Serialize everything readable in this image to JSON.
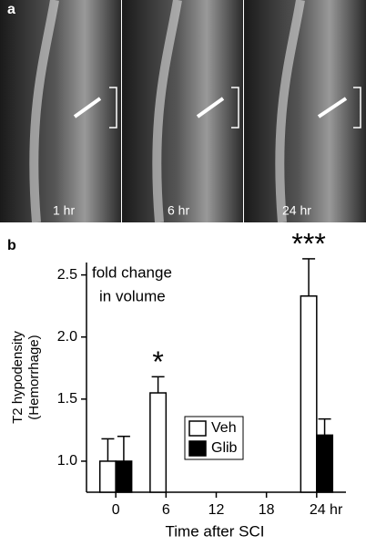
{
  "panel_a": {
    "label": "a",
    "images": [
      {
        "label": "1 hr"
      },
      {
        "label": "6 hr"
      },
      {
        "label": "24 hr"
      }
    ]
  },
  "chart_data": {
    "type": "bar",
    "panel_label": "b",
    "y_label": [
      "T2 hypodensity",
      "(Hemorrhage)"
    ],
    "x_label": "Time after SCI",
    "note": [
      "fold change",
      "in volume"
    ],
    "x": [
      0,
      6,
      24
    ],
    "series": [
      {
        "name": "Veh",
        "color": "#ffffff",
        "values": [
          1.0,
          1.55,
          2.33
        ],
        "errors": [
          0.18,
          0.13,
          0.3
        ]
      },
      {
        "name": "Glib",
        "color": "#000000",
        "values": [
          1.0,
          null,
          1.21
        ],
        "errors": [
          0.2,
          null,
          0.13
        ]
      }
    ],
    "annotations": [
      {
        "text": "*",
        "x": 6
      },
      {
        "text": "***",
        "x": 24
      }
    ],
    "xlim": [
      -3.5,
      27.5
    ],
    "xticks": [
      0,
      6,
      12,
      18,
      {
        "value": 24,
        "label": "24 hr"
      }
    ],
    "ylim": [
      0.75,
      2.6
    ],
    "yticks": [
      {
        "value": 1,
        "label": "1.0"
      },
      {
        "value": 1.5,
        "label": "1.5"
      },
      {
        "value": 2,
        "label": "2.0"
      },
      {
        "value": 2.5,
        "label": "2.5"
      }
    ],
    "grid": false
  }
}
